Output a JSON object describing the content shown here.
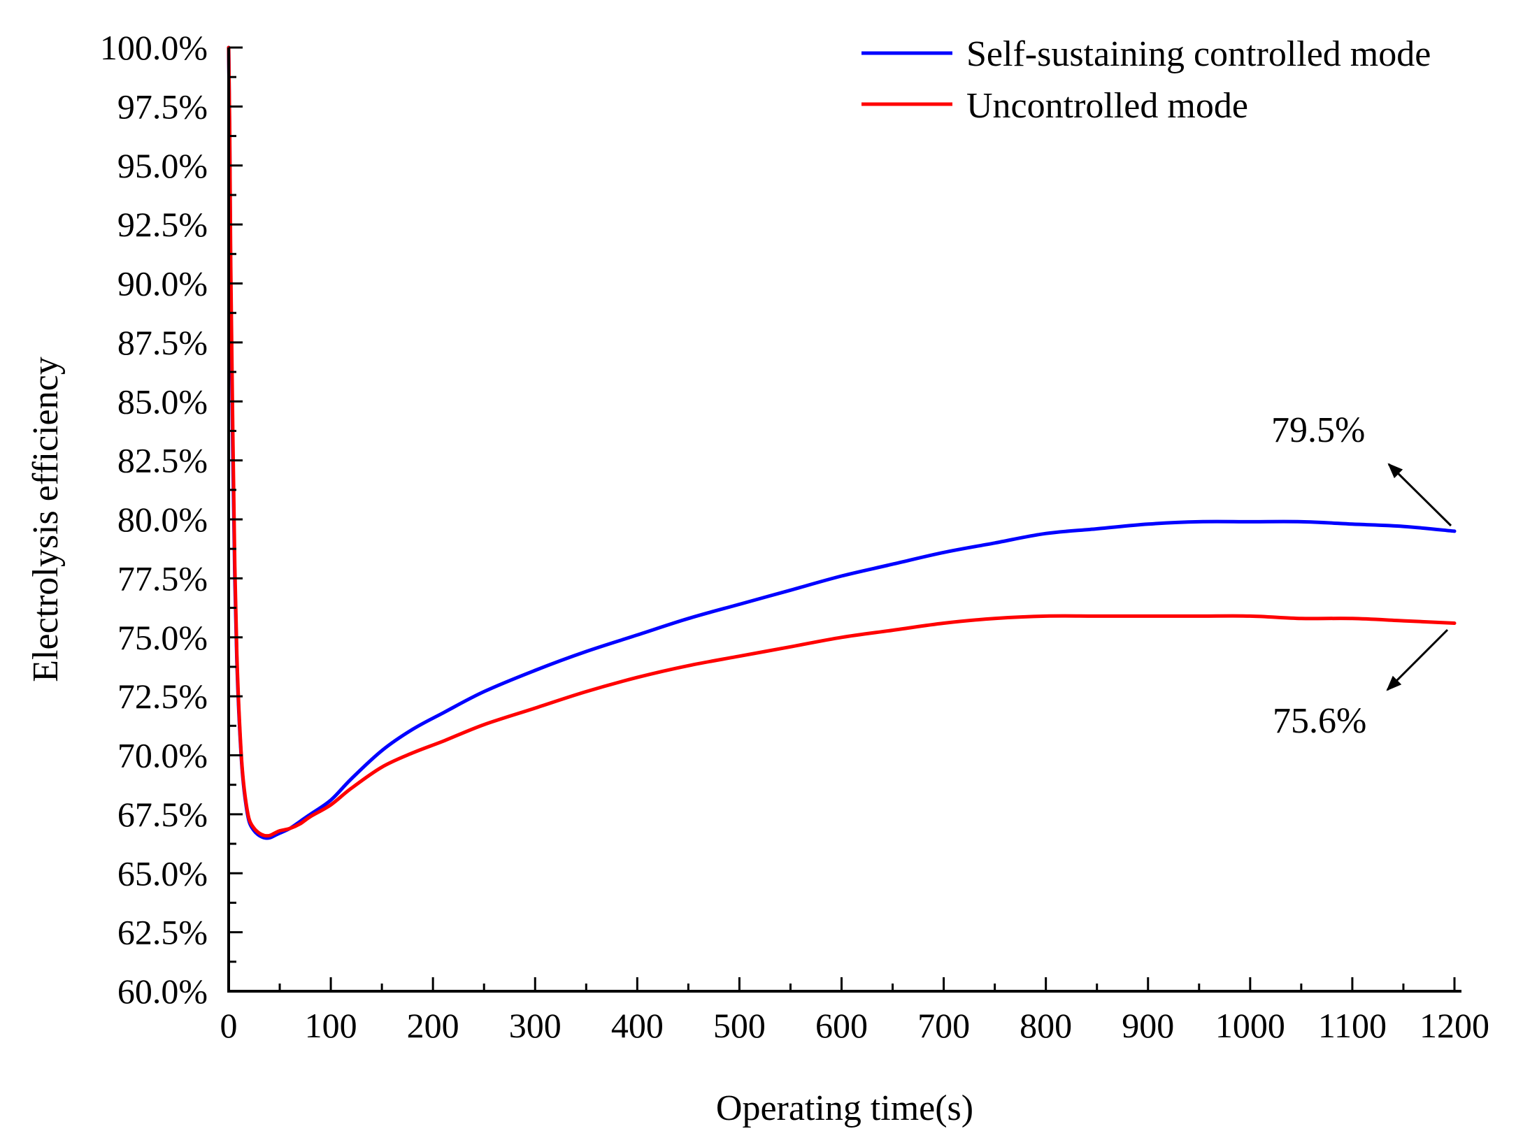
{
  "chart_data": {
    "type": "line",
    "title": "",
    "xlabel": "Operating time(s)",
    "ylabel": "Electrolysis efficiency",
    "xlim": [
      0,
      1200
    ],
    "ylim": [
      60.0,
      100.0
    ],
    "x_ticks": [
      0,
      100,
      200,
      300,
      400,
      500,
      600,
      700,
      800,
      900,
      1000,
      1100,
      1200
    ],
    "x_tick_labels": [
      "0",
      "100",
      "200",
      "300",
      "400",
      "500",
      "600",
      "700",
      "800",
      "900",
      "1000",
      "1100",
      "1200"
    ],
    "y_ticks": [
      60.0,
      62.5,
      65.0,
      67.5,
      70.0,
      72.5,
      75.0,
      77.5,
      80.0,
      82.5,
      85.0,
      87.5,
      90.0,
      92.5,
      95.0,
      97.5,
      100.0
    ],
    "y_tick_labels": [
      "60.0%",
      "62.5%",
      "65.0%",
      "67.5%",
      "70.0%",
      "72.5%",
      "75.0%",
      "77.5%",
      "80.0%",
      "82.5%",
      "85.0%",
      "87.5%",
      "90.0%",
      "92.5%",
      "95.0%",
      "97.5%",
      "100.0%"
    ],
    "grid": false,
    "legend_position": "top-right",
    "series": [
      {
        "name": "Self-sustaining controlled mode",
        "color": "#0000ff",
        "x": [
          0,
          1,
          2,
          4,
          6,
          8,
          10,
          13,
          16,
          20,
          25,
          30,
          35,
          40,
          45,
          50,
          60,
          70,
          80,
          100,
          120,
          150,
          180,
          210,
          250,
          300,
          350,
          400,
          450,
          500,
          550,
          600,
          650,
          700,
          750,
          800,
          850,
          900,
          950,
          1000,
          1050,
          1100,
          1150,
          1200
        ],
        "values": [
          100.0,
          96.0,
          90.0,
          83.0,
          77.5,
          74.0,
          71.8,
          69.5,
          68.2,
          67.2,
          66.8,
          66.6,
          66.5,
          66.5,
          66.6,
          66.7,
          66.9,
          67.2,
          67.5,
          68.1,
          69.0,
          70.2,
          71.1,
          71.8,
          72.7,
          73.6,
          74.4,
          75.1,
          75.8,
          76.4,
          77.0,
          77.6,
          78.1,
          78.6,
          79.0,
          79.4,
          79.6,
          79.8,
          79.9,
          79.9,
          79.9,
          79.8,
          79.7,
          79.5
        ]
      },
      {
        "name": "Uncontrolled mode",
        "color": "#ff0000",
        "x": [
          0,
          1,
          2,
          4,
          6,
          8,
          10,
          13,
          16,
          20,
          25,
          30,
          35,
          40,
          45,
          50,
          60,
          70,
          80,
          100,
          120,
          150,
          180,
          210,
          250,
          300,
          350,
          400,
          450,
          500,
          550,
          600,
          650,
          700,
          750,
          800,
          850,
          900,
          950,
          1000,
          1050,
          1100,
          1150,
          1200
        ],
        "values": [
          100.0,
          96.5,
          91.0,
          84.0,
          78.0,
          74.3,
          72.0,
          69.6,
          68.3,
          67.3,
          66.9,
          66.7,
          66.6,
          66.6,
          66.7,
          66.8,
          66.9,
          67.1,
          67.4,
          67.9,
          68.6,
          69.5,
          70.1,
          70.6,
          71.3,
          72.0,
          72.7,
          73.3,
          73.8,
          74.2,
          74.6,
          75.0,
          75.3,
          75.6,
          75.8,
          75.9,
          75.9,
          75.9,
          75.9,
          75.9,
          75.8,
          75.8,
          75.7,
          75.6
        ]
      }
    ],
    "annotations": [
      {
        "text": "79.5%",
        "series": 0,
        "x": 1200,
        "y": 79.5,
        "arrow_direction": "up-left"
      },
      {
        "text": "75.6%",
        "series": 1,
        "x": 1200,
        "y": 75.6,
        "arrow_direction": "down-left"
      }
    ]
  }
}
